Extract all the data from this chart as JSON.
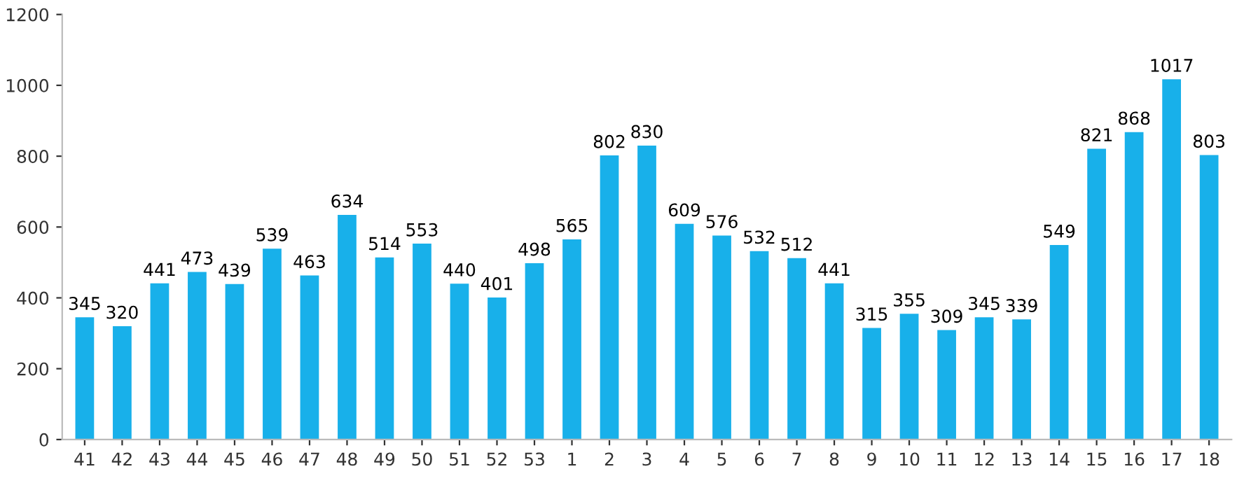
{
  "chart_data": {
    "type": "bar",
    "categories": [
      "41",
      "42",
      "43",
      "44",
      "45",
      "46",
      "47",
      "48",
      "49",
      "50",
      "51",
      "52",
      "53",
      "1",
      "2",
      "3",
      "4",
      "5",
      "6",
      "7",
      "8",
      "9",
      "10",
      "11",
      "12",
      "13",
      "14",
      "15",
      "16",
      "17",
      "18"
    ],
    "values": [
      345,
      320,
      441,
      473,
      439,
      539,
      463,
      634,
      514,
      553,
      440,
      401,
      498,
      565,
      802,
      830,
      609,
      576,
      532,
      512,
      441,
      315,
      355,
      309,
      345,
      339,
      549,
      821,
      868,
      1017,
      803
    ],
    "color": "#18b0ea",
    "ylim": [
      0,
      1200
    ],
    "yticks": [
      0,
      200,
      400,
      600,
      800,
      1000,
      1200
    ],
    "data_labels": true,
    "grid": false,
    "legend": false
  }
}
